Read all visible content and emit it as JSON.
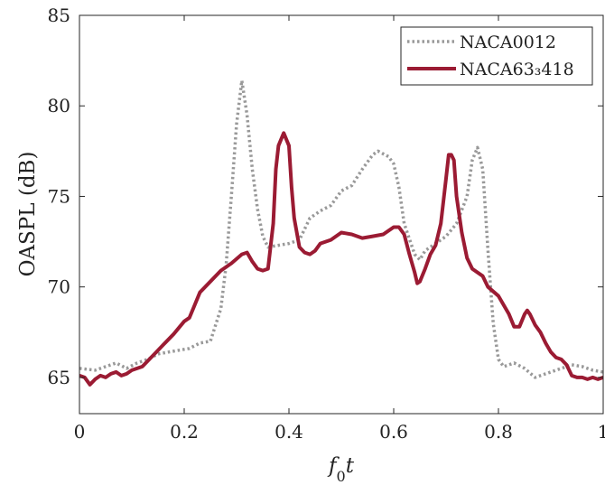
{
  "chart_data": {
    "type": "line",
    "xlabel": "f0t",
    "ylabel": "OASPL (dB)",
    "xlim": [
      0,
      1
    ],
    "ylim": [
      63,
      85
    ],
    "xticks": [
      0,
      0.2,
      0.4,
      0.6,
      0.8,
      1
    ],
    "xtick_labels": [
      "0",
      "0.2",
      "0.4",
      "0.6",
      "0.8",
      "1"
    ],
    "yticks": [
      65,
      70,
      75,
      80,
      85
    ],
    "ytick_labels": [
      "65",
      "70",
      "75",
      "80",
      "85"
    ],
    "grid": false,
    "legend_position": "top-right",
    "series": [
      {
        "name": "NACA0012",
        "color": "#999999",
        "style": "dotted",
        "points": [
          [
            0.0,
            65.5
          ],
          [
            0.03,
            65.4
          ],
          [
            0.05,
            65.6
          ],
          [
            0.07,
            65.8
          ],
          [
            0.09,
            65.5
          ],
          [
            0.11,
            65.8
          ],
          [
            0.13,
            66.0
          ],
          [
            0.15,
            66.3
          ],
          [
            0.17,
            66.4
          ],
          [
            0.19,
            66.5
          ],
          [
            0.21,
            66.6
          ],
          [
            0.23,
            66.9
          ],
          [
            0.25,
            67.0
          ],
          [
            0.27,
            68.8
          ],
          [
            0.28,
            71.2
          ],
          [
            0.29,
            75.0
          ],
          [
            0.3,
            79.0
          ],
          [
            0.31,
            81.4
          ],
          [
            0.32,
            79.5
          ],
          [
            0.33,
            76.5
          ],
          [
            0.34,
            74.3
          ],
          [
            0.35,
            72.8
          ],
          [
            0.36,
            72.2
          ],
          [
            0.38,
            72.3
          ],
          [
            0.4,
            72.4
          ],
          [
            0.42,
            72.6
          ],
          [
            0.44,
            73.8
          ],
          [
            0.46,
            74.2
          ],
          [
            0.48,
            74.5
          ],
          [
            0.5,
            75.3
          ],
          [
            0.52,
            75.6
          ],
          [
            0.54,
            76.5
          ],
          [
            0.56,
            77.3
          ],
          [
            0.57,
            77.5
          ],
          [
            0.59,
            77.2
          ],
          [
            0.6,
            76.8
          ],
          [
            0.61,
            75.5
          ],
          [
            0.62,
            73.5
          ],
          [
            0.64,
            71.8
          ],
          [
            0.65,
            71.5
          ],
          [
            0.66,
            72.0
          ],
          [
            0.68,
            72.4
          ],
          [
            0.7,
            72.8
          ],
          [
            0.72,
            73.5
          ],
          [
            0.74,
            75.0
          ],
          [
            0.75,
            77.0
          ],
          [
            0.76,
            77.7
          ],
          [
            0.77,
            76.5
          ],
          [
            0.78,
            72.0
          ],
          [
            0.79,
            68.0
          ],
          [
            0.8,
            66.0
          ],
          [
            0.81,
            65.6
          ],
          [
            0.83,
            65.8
          ],
          [
            0.85,
            65.5
          ],
          [
            0.87,
            65.0
          ],
          [
            0.89,
            65.2
          ],
          [
            0.92,
            65.5
          ],
          [
            0.94,
            65.7
          ],
          [
            0.96,
            65.6
          ],
          [
            0.98,
            65.4
          ],
          [
            1.0,
            65.3
          ]
        ]
      },
      {
        "name": "NACA63₃418",
        "color": "#9b1b33",
        "style": "solid",
        "points": [
          [
            0.0,
            65.1
          ],
          [
            0.01,
            65.0
          ],
          [
            0.02,
            64.6
          ],
          [
            0.03,
            64.9
          ],
          [
            0.04,
            65.1
          ],
          [
            0.05,
            65.0
          ],
          [
            0.06,
            65.2
          ],
          [
            0.07,
            65.3
          ],
          [
            0.08,
            65.1
          ],
          [
            0.09,
            65.2
          ],
          [
            0.1,
            65.4
          ],
          [
            0.12,
            65.6
          ],
          [
            0.14,
            66.2
          ],
          [
            0.16,
            66.8
          ],
          [
            0.18,
            67.4
          ],
          [
            0.2,
            68.1
          ],
          [
            0.21,
            68.3
          ],
          [
            0.22,
            69.0
          ],
          [
            0.23,
            69.7
          ],
          [
            0.25,
            70.3
          ],
          [
            0.27,
            70.9
          ],
          [
            0.29,
            71.3
          ],
          [
            0.31,
            71.8
          ],
          [
            0.32,
            71.9
          ],
          [
            0.33,
            71.4
          ],
          [
            0.34,
            71.0
          ],
          [
            0.35,
            70.9
          ],
          [
            0.36,
            71.0
          ],
          [
            0.37,
            73.5
          ],
          [
            0.375,
            76.5
          ],
          [
            0.38,
            77.8
          ],
          [
            0.39,
            78.5
          ],
          [
            0.4,
            77.8
          ],
          [
            0.405,
            75.5
          ],
          [
            0.41,
            73.8
          ],
          [
            0.42,
            72.2
          ],
          [
            0.43,
            71.9
          ],
          [
            0.44,
            71.8
          ],
          [
            0.45,
            72.0
          ],
          [
            0.46,
            72.4
          ],
          [
            0.48,
            72.6
          ],
          [
            0.5,
            73.0
          ],
          [
            0.52,
            72.9
          ],
          [
            0.54,
            72.7
          ],
          [
            0.56,
            72.8
          ],
          [
            0.58,
            72.9
          ],
          [
            0.6,
            73.3
          ],
          [
            0.61,
            73.3
          ],
          [
            0.62,
            72.9
          ],
          [
            0.63,
            71.8
          ],
          [
            0.64,
            70.8
          ],
          [
            0.645,
            70.2
          ],
          [
            0.65,
            70.3
          ],
          [
            0.66,
            71.0
          ],
          [
            0.67,
            71.8
          ],
          [
            0.68,
            72.3
          ],
          [
            0.69,
            73.5
          ],
          [
            0.7,
            76.0
          ],
          [
            0.705,
            77.3
          ],
          [
            0.71,
            77.3
          ],
          [
            0.715,
            77.0
          ],
          [
            0.72,
            75.0
          ],
          [
            0.73,
            73.0
          ],
          [
            0.74,
            71.6
          ],
          [
            0.75,
            71.0
          ],
          [
            0.77,
            70.6
          ],
          [
            0.78,
            70.0
          ],
          [
            0.8,
            69.5
          ],
          [
            0.82,
            68.5
          ],
          [
            0.83,
            67.8
          ],
          [
            0.84,
            67.8
          ],
          [
            0.85,
            68.5
          ],
          [
            0.855,
            68.7
          ],
          [
            0.86,
            68.5
          ],
          [
            0.87,
            67.9
          ],
          [
            0.88,
            67.5
          ],
          [
            0.89,
            66.9
          ],
          [
            0.9,
            66.4
          ],
          [
            0.91,
            66.1
          ],
          [
            0.92,
            66.0
          ],
          [
            0.93,
            65.7
          ],
          [
            0.94,
            65.1
          ],
          [
            0.95,
            65.0
          ],
          [
            0.96,
            65.0
          ],
          [
            0.97,
            64.9
          ],
          [
            0.98,
            65.0
          ],
          [
            0.99,
            64.9
          ],
          [
            1.0,
            65.0
          ]
        ]
      }
    ]
  }
}
